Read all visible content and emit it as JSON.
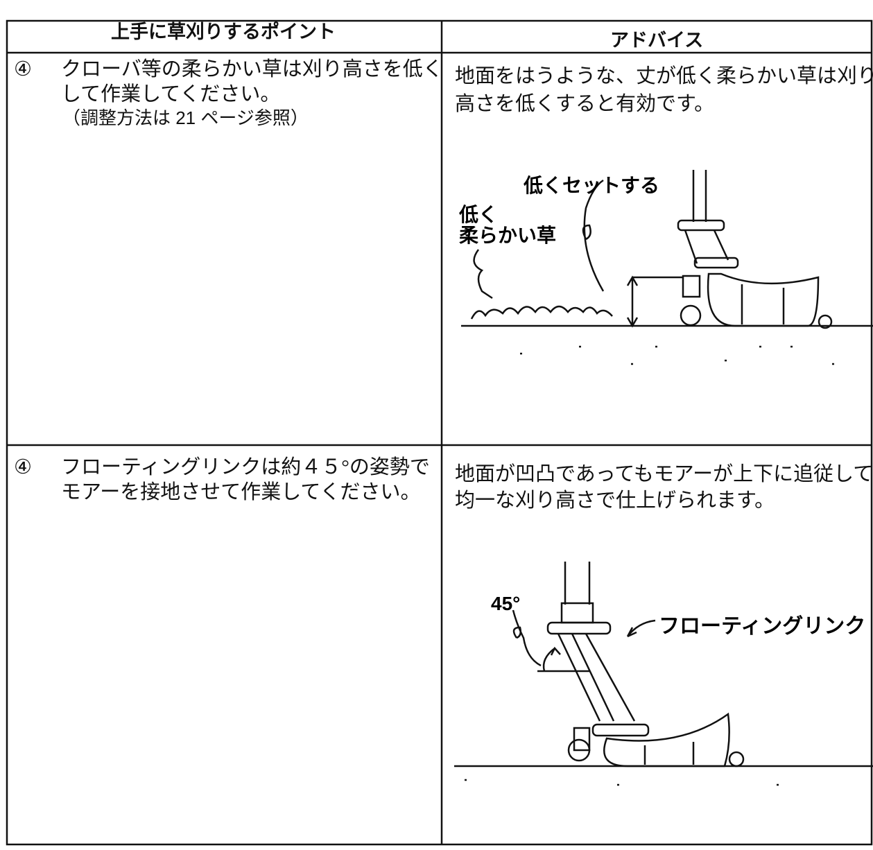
{
  "header": {
    "columns": [
      "上手に草刈りするポイント",
      "アドバイス"
    ]
  },
  "rows": [
    {
      "marker": "④",
      "point": [
        "クローバ等の柔らかい草は刈り高さを低く",
        "して作業してください。",
        "（調整方法は 21 ページ参照）"
      ],
      "advice": [
        "地面をはうような、丈が低く柔らかい草は刈り",
        "高さを低くすると有効です。"
      ],
      "figure_labels": [
        "低くセットする",
        "低く",
        "柔らかい草"
      ]
    },
    {
      "marker": "④",
      "point": [
        "フローティングリンクは約４５°の姿勢で",
        "モアーを接地させて作業してください。"
      ],
      "advice": [
        "地面が凹凸であってもモアーが上下に追従して",
        "均一な刈り高さで仕上げられます。"
      ],
      "figure_labels": [
        "45°",
        "フローティングリンク"
      ]
    }
  ]
}
